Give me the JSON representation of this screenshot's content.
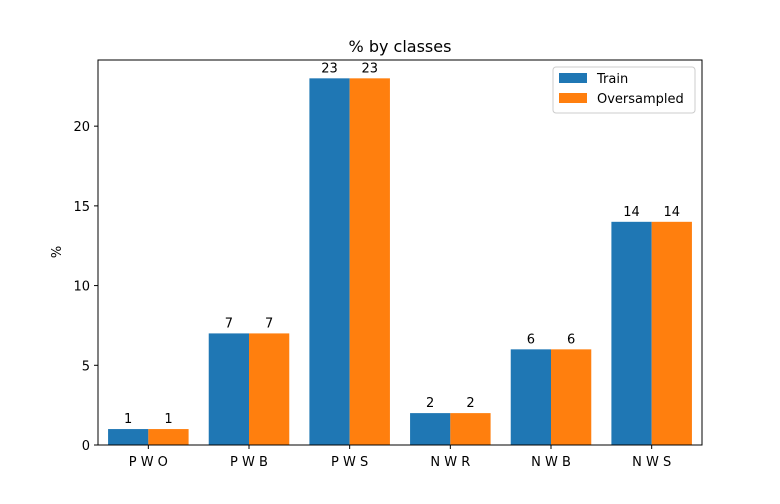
{
  "chart_data": {
    "type": "bar",
    "title": "% by classes",
    "xlabel": "",
    "ylabel": "%",
    "categories": [
      "P W O",
      "P W B",
      "P W S",
      "N W R",
      "N W B",
      "N W S"
    ],
    "series": [
      {
        "name": "Train",
        "values": [
          1,
          7,
          23,
          2,
          6,
          14
        ],
        "color": "#1f77b4"
      },
      {
        "name": "Oversampled",
        "values": [
          1,
          7,
          23,
          2,
          6,
          14
        ],
        "color": "#ff7f0e"
      }
    ],
    "ylim": [
      0,
      24.15
    ],
    "yticks": [
      0,
      5,
      10,
      15,
      20
    ],
    "grid": false,
    "legend_position": "top-right",
    "show_data_labels": true
  }
}
